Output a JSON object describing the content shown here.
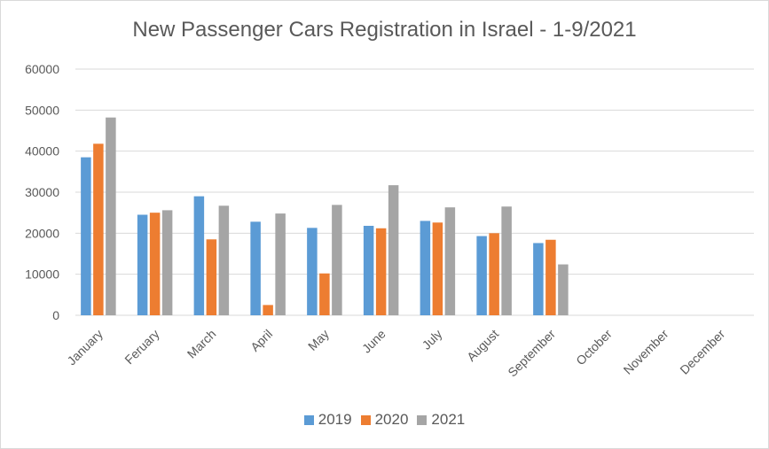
{
  "chart_data": {
    "type": "bar",
    "title": "New Passenger Cars Registration in Israel - 1-9/2021",
    "xlabel": "",
    "ylabel": "",
    "categories": [
      "January",
      "Feruary",
      "March",
      "April",
      "May",
      "June",
      "July",
      "August",
      "September",
      "October",
      "November",
      "December"
    ],
    "ylim": [
      0,
      60000
    ],
    "yticks": [
      "0",
      "10000",
      "20000",
      "30000",
      "40000",
      "50000",
      "60000"
    ],
    "grid": true,
    "legend_position": "bottom",
    "series": [
      {
        "name": "2019",
        "color": "#5b9bd5",
        "values": [
          38500,
          24500,
          29000,
          22800,
          21300,
          21800,
          23000,
          19300,
          17600,
          null,
          null,
          null
        ]
      },
      {
        "name": "2020",
        "color": "#ed7d31",
        "values": [
          41800,
          25000,
          18500,
          2500,
          10200,
          21200,
          22600,
          20000,
          18400,
          null,
          null,
          null
        ]
      },
      {
        "name": "2021",
        "color": "#a5a5a5",
        "values": [
          48200,
          25600,
          26700,
          24800,
          26900,
          31700,
          26300,
          26500,
          12400,
          null,
          null,
          null
        ]
      }
    ]
  }
}
